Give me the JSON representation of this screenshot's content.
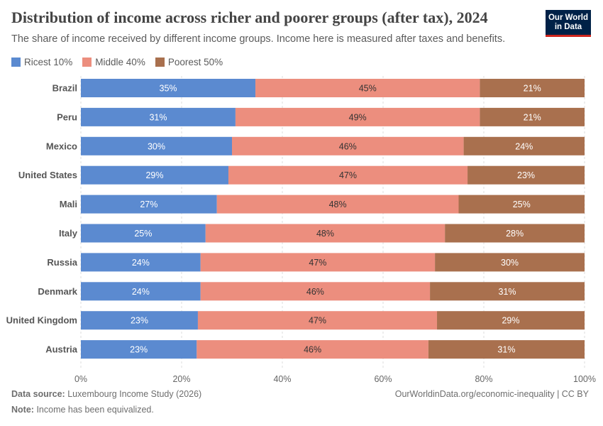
{
  "header": {
    "title": "Distribution of income across richer and poorer groups (after tax), 2024",
    "subtitle": "The share of income received by different income groups. Income here is measured after taxes and benefits."
  },
  "logo": {
    "line1": "Our World",
    "line2": "in Data"
  },
  "colors": {
    "rich": "#5b8ad0",
    "middle": "#ec8e7e",
    "poor": "#a9704e",
    "logo_bg": "#002147",
    "logo_accent": "#ce261e"
  },
  "chart_data": {
    "type": "bar",
    "orientation": "horizontal",
    "stacked": true,
    "categories": [
      "Brazil",
      "Peru",
      "Mexico",
      "United States",
      "Mali",
      "Italy",
      "Russia",
      "Denmark",
      "United Kingdom",
      "Austria"
    ],
    "series": [
      {
        "name": "Ricest 10%",
        "color": "#5b8ad0",
        "values": [
          35,
          31,
          30,
          29,
          27,
          25,
          24,
          24,
          23,
          23
        ],
        "labels": [
          "35%",
          "31%",
          "30%",
          "29%",
          "27%",
          "25%",
          "24%",
          "24%",
          "23%",
          "23%"
        ]
      },
      {
        "name": "Middle 40%",
        "color": "#ec8e7e",
        "values": [
          45,
          49,
          46,
          47,
          48,
          48,
          47,
          46,
          47,
          46
        ],
        "labels": [
          "45%",
          "49%",
          "46%",
          "47%",
          "48%",
          "48%",
          "47%",
          "46%",
          "47%",
          "46%"
        ]
      },
      {
        "name": "Poorest 50%",
        "color": "#a9704e",
        "values": [
          21,
          21,
          24,
          23,
          25,
          28,
          30,
          31,
          29,
          31
        ],
        "labels": [
          "21%",
          "21%",
          "24%",
          "23%",
          "25%",
          "28%",
          "30%",
          "31%",
          "29%",
          "31%"
        ]
      }
    ],
    "xlim": [
      0,
      100
    ],
    "x_ticks": [
      0,
      20,
      40,
      60,
      80,
      100
    ],
    "x_tick_labels": [
      "0%",
      "20%",
      "40%",
      "60%",
      "80%",
      "100%"
    ],
    "grid": "vertical-dashed",
    "legend_placement": "top-left"
  },
  "footer": {
    "source_label": "Data source:",
    "source_text": "Luxembourg Income Study (2026)",
    "note_label": "Note:",
    "note_text": "Income has been equivalized.",
    "right_text": "OurWorldinData.org/economic-inequality | CC BY"
  }
}
